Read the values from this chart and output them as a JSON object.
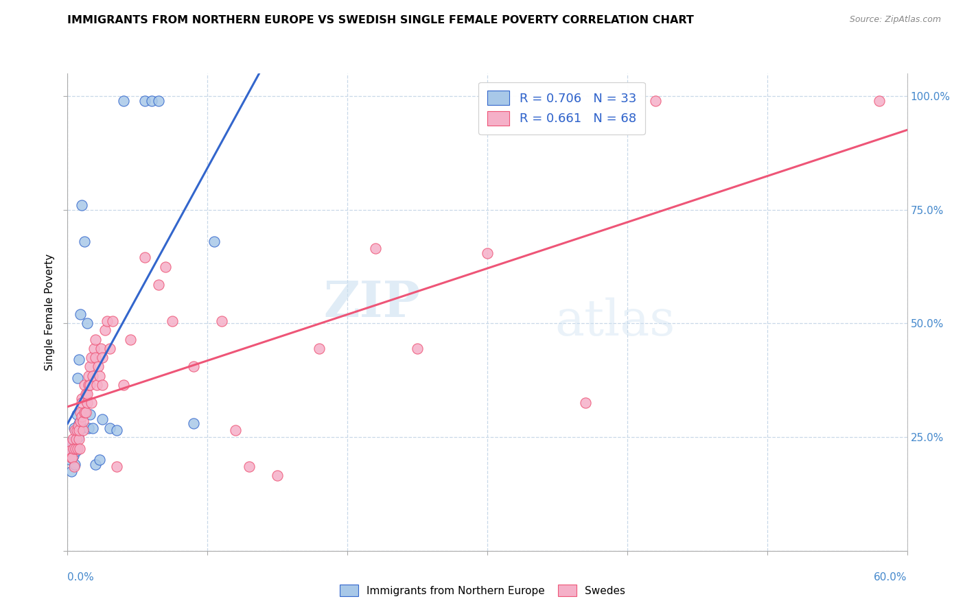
{
  "title": "IMMIGRANTS FROM NORTHERN EUROPE VS SWEDISH SINGLE FEMALE POVERTY CORRELATION CHART",
  "source": "Source: ZipAtlas.com",
  "ylabel": "Single Female Poverty",
  "watermark_zip": "ZIP",
  "watermark_atlas": "atlas",
  "blue_color": "#a8c8e8",
  "pink_color": "#f5b0c8",
  "line_blue": "#3366cc",
  "line_pink": "#ee5577",
  "legend_label_blue": "R = 0.706   N = 33",
  "legend_label_pink": "R = 0.661   N = 68",
  "legend_bottom_blue": "Immigrants from Northern Europe",
  "legend_bottom_pink": "Swedes",
  "xlim": [
    0,
    60
  ],
  "ylim": [
    0,
    1.05
  ],
  "ytick_vals": [
    0.0,
    0.25,
    0.5,
    0.75,
    1.0
  ],
  "ytick_labels": [
    "",
    "25.0%",
    "50.0%",
    "75.0%",
    "100.0%"
  ],
  "xtick_vals": [
    0,
    10,
    20,
    30,
    40,
    50,
    60
  ],
  "blue_scatter": [
    [
      0.1,
      0.22
    ],
    [
      0.2,
      0.2
    ],
    [
      0.25,
      0.175
    ],
    [
      0.3,
      0.24
    ],
    [
      0.4,
      0.21
    ],
    [
      0.45,
      0.27
    ],
    [
      0.5,
      0.19
    ],
    [
      0.5,
      0.23
    ],
    [
      0.6,
      0.22
    ],
    [
      0.65,
      0.3
    ],
    [
      0.7,
      0.38
    ],
    [
      0.75,
      0.25
    ],
    [
      0.8,
      0.42
    ],
    [
      0.8,
      0.28
    ],
    [
      0.9,
      0.52
    ],
    [
      1.0,
      0.76
    ],
    [
      1.0,
      0.27
    ],
    [
      1.2,
      0.68
    ],
    [
      1.4,
      0.5
    ],
    [
      1.5,
      0.27
    ],
    [
      1.6,
      0.3
    ],
    [
      1.8,
      0.27
    ],
    [
      2.0,
      0.19
    ],
    [
      2.3,
      0.2
    ],
    [
      2.5,
      0.29
    ],
    [
      3.0,
      0.27
    ],
    [
      3.5,
      0.265
    ],
    [
      4.0,
      0.99
    ],
    [
      5.5,
      0.99
    ],
    [
      6.0,
      0.99
    ],
    [
      6.5,
      0.99
    ],
    [
      9.0,
      0.28
    ],
    [
      10.5,
      0.68
    ]
  ],
  "pink_scatter": [
    [
      0.1,
      0.235
    ],
    [
      0.2,
      0.22
    ],
    [
      0.25,
      0.205
    ],
    [
      0.3,
      0.205
    ],
    [
      0.35,
      0.245
    ],
    [
      0.4,
      0.225
    ],
    [
      0.45,
      0.185
    ],
    [
      0.5,
      0.265
    ],
    [
      0.55,
      0.225
    ],
    [
      0.6,
      0.245
    ],
    [
      0.65,
      0.265
    ],
    [
      0.7,
      0.225
    ],
    [
      0.75,
      0.275
    ],
    [
      0.8,
      0.245
    ],
    [
      0.8,
      0.265
    ],
    [
      0.85,
      0.225
    ],
    [
      0.9,
      0.285
    ],
    [
      0.9,
      0.305
    ],
    [
      1.0,
      0.295
    ],
    [
      1.0,
      0.335
    ],
    [
      1.0,
      0.325
    ],
    [
      1.1,
      0.265
    ],
    [
      1.1,
      0.285
    ],
    [
      1.2,
      0.305
    ],
    [
      1.2,
      0.365
    ],
    [
      1.3,
      0.345
    ],
    [
      1.3,
      0.305
    ],
    [
      1.4,
      0.325
    ],
    [
      1.4,
      0.345
    ],
    [
      1.5,
      0.365
    ],
    [
      1.5,
      0.385
    ],
    [
      1.6,
      0.405
    ],
    [
      1.6,
      0.365
    ],
    [
      1.7,
      0.325
    ],
    [
      1.7,
      0.425
    ],
    [
      1.8,
      0.385
    ],
    [
      1.9,
      0.445
    ],
    [
      2.0,
      0.465
    ],
    [
      2.0,
      0.425
    ],
    [
      2.1,
      0.365
    ],
    [
      2.2,
      0.405
    ],
    [
      2.3,
      0.385
    ],
    [
      2.4,
      0.445
    ],
    [
      2.5,
      0.425
    ],
    [
      2.5,
      0.365
    ],
    [
      2.7,
      0.485
    ],
    [
      2.8,
      0.505
    ],
    [
      3.0,
      0.445
    ],
    [
      3.2,
      0.505
    ],
    [
      3.5,
      0.185
    ],
    [
      4.0,
      0.365
    ],
    [
      4.5,
      0.465
    ],
    [
      5.5,
      0.645
    ],
    [
      6.5,
      0.585
    ],
    [
      7.0,
      0.625
    ],
    [
      7.5,
      0.505
    ],
    [
      9.0,
      0.405
    ],
    [
      11.0,
      0.505
    ],
    [
      12.0,
      0.265
    ],
    [
      13.0,
      0.185
    ],
    [
      15.0,
      0.165
    ],
    [
      18.0,
      0.445
    ],
    [
      22.0,
      0.665
    ],
    [
      25.0,
      0.445
    ],
    [
      30.0,
      0.655
    ],
    [
      37.0,
      0.325
    ],
    [
      42.0,
      0.99
    ],
    [
      58.0,
      0.99
    ]
  ]
}
